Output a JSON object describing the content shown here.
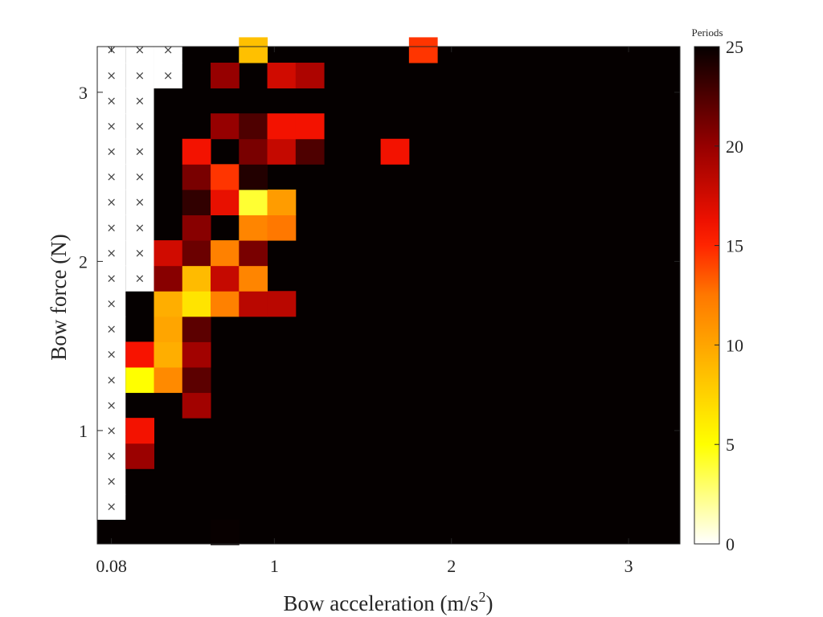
{
  "chart_data": {
    "type": "heatmap",
    "xlabel": "Bow acceleration (m/s²)",
    "ylabel": "Bow force (N)",
    "colormap": "hot (reversed)",
    "colorbar": {
      "title": "Periods",
      "range": [
        0,
        25
      ],
      "ticks": [
        0,
        5,
        10,
        15,
        20,
        25
      ],
      "tick_labels": [
        "0",
        "5",
        "10",
        "15",
        "20",
        "25"
      ]
    },
    "x_ticks": [
      0.08,
      1,
      2,
      3
    ],
    "x_tick_labels": [
      "0.08",
      "1",
      "2",
      "3"
    ],
    "y_ticks": [
      1,
      2,
      3
    ],
    "y_tick_labels": [
      "1",
      "2",
      "3"
    ],
    "xlim": [
      0.0,
      3.29
    ],
    "ylim": [
      0.33,
      3.27
    ],
    "grid": false,
    "x_start": 0.08,
    "x_step": 0.16,
    "y_start": 0.4,
    "y_step": 0.15,
    "n_cols": 20,
    "n_rows": 20,
    "default_value": 25,
    "not_available_symbol": "×",
    "not_available_counts": [
      0,
      0,
      4,
      5,
      6,
      7,
      8,
      9,
      10,
      11,
      13,
      14,
      15,
      16,
      17,
      18,
      19,
      20,
      20,
      20
    ],
    "not_available_rows_col0": [
      1,
      19
    ],
    "not_available_rows_col1": [
      10,
      19
    ],
    "not_available_rows_col2": [
      18,
      19
    ],
    "values": [
      [
        0.72,
        0.4,
        24.9
      ],
      [
        0.24,
        0.85,
        19.8
      ],
      [
        0.24,
        0.99,
        16.0
      ],
      [
        0.56,
        1.15,
        19.5
      ],
      [
        0.24,
        1.3,
        5.0
      ],
      [
        0.4,
        1.3,
        11.5
      ],
      [
        0.56,
        1.3,
        22.0
      ],
      [
        0.24,
        1.45,
        15.8
      ],
      [
        0.4,
        1.45,
        9.5
      ],
      [
        0.56,
        1.45,
        19.5
      ],
      [
        0.4,
        1.6,
        10.0
      ],
      [
        0.56,
        1.6,
        22.0
      ],
      [
        0.4,
        1.75,
        9.5
      ],
      [
        0.56,
        1.75,
        6.5
      ],
      [
        0.72,
        1.75,
        12.0
      ],
      [
        0.88,
        1.75,
        18.5
      ],
      [
        1.04,
        1.75,
        18.5
      ],
      [
        0.4,
        1.9,
        20.5
      ],
      [
        0.56,
        1.9,
        8.8
      ],
      [
        0.72,
        1.9,
        18.0
      ],
      [
        0.88,
        1.9,
        11.8
      ],
      [
        0.4,
        2.05,
        17.5
      ],
      [
        0.56,
        2.05,
        21.5
      ],
      [
        0.72,
        2.05,
        12.0
      ],
      [
        0.88,
        2.05,
        21.0
      ],
      [
        0.56,
        2.2,
        20.5
      ],
      [
        0.88,
        2.2,
        11.8
      ],
      [
        1.04,
        2.2,
        12.5
      ],
      [
        0.56,
        2.35,
        23.5
      ],
      [
        0.72,
        2.35,
        16.5
      ],
      [
        0.88,
        2.35,
        4.0
      ],
      [
        1.04,
        2.35,
        10.5
      ],
      [
        0.56,
        2.5,
        21.0
      ],
      [
        0.72,
        2.5,
        14.5
      ],
      [
        0.88,
        2.5,
        24.0
      ],
      [
        0.56,
        2.65,
        16.0
      ],
      [
        0.88,
        2.65,
        21.0
      ],
      [
        1.04,
        2.65,
        18.0
      ],
      [
        1.2,
        2.65,
        22.5
      ],
      [
        1.68,
        2.65,
        16.0
      ],
      [
        0.72,
        2.8,
        20.0
      ],
      [
        0.88,
        2.8,
        22.5
      ],
      [
        1.04,
        2.8,
        16.0
      ],
      [
        1.2,
        2.8,
        16.0
      ],
      [
        0.72,
        3.1,
        20.0
      ],
      [
        1.04,
        3.1,
        17.5
      ],
      [
        1.2,
        3.1,
        19.0
      ],
      [
        0.88,
        3.25,
        8.5
      ],
      [
        1.84,
        3.25,
        14.5
      ]
    ]
  }
}
